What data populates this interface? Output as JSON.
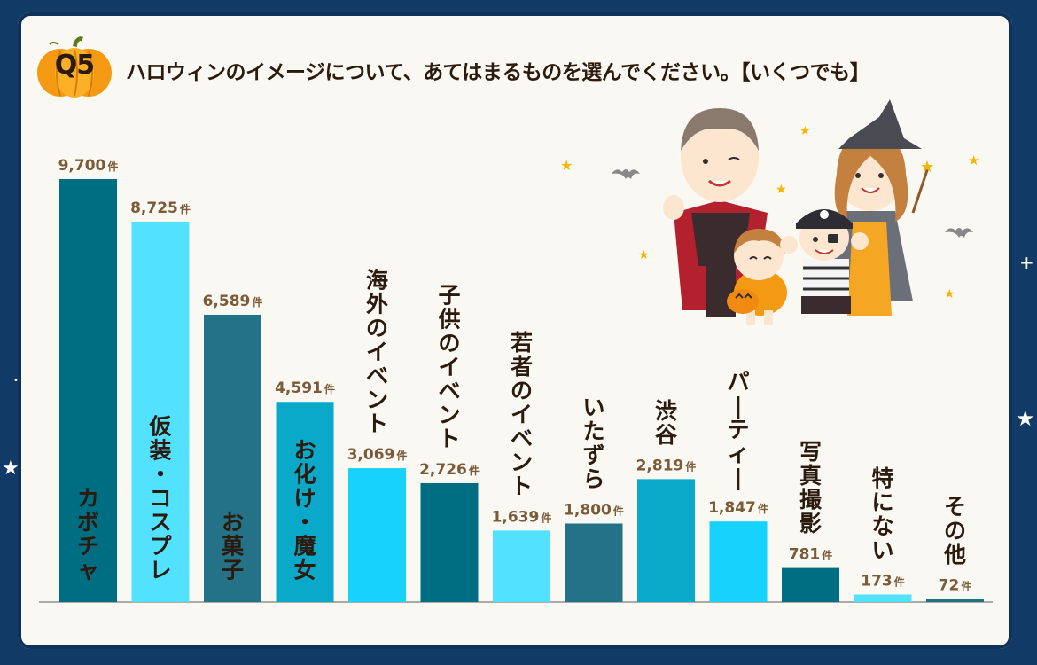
{
  "badge": "Q5",
  "title": "ハロウィンのイメージについて、あてはまるものを選んでください。【いくつでも】",
  "chart_data": {
    "type": "bar",
    "unit": "件",
    "categories": [
      "カボチャ",
      "仮装・コスプレ",
      "お菓子",
      "お化け・魔女",
      "海外のイベント",
      "子供のイベント",
      "若者のイベント",
      "いたずら",
      "渋谷",
      "パーティー",
      "写真撮影",
      "特にない",
      "その他"
    ],
    "values": [
      9700,
      8725,
      6589,
      4591,
      3069,
      2726,
      1639,
      1800,
      2819,
      1847,
      781,
      173,
      72
    ],
    "value_labels": [
      "9,700",
      "8,725",
      "6,589",
      "4,591",
      "3,069",
      "2,726",
      "1,639",
      "1,800",
      "2,819",
      "1,847",
      "781",
      "173",
      "72"
    ],
    "colors": [
      "#006e82",
      "#52e2ff",
      "#237287",
      "#0aa9c9",
      "#17d2fb",
      "#006e82",
      "#52e2ff",
      "#237287",
      "#0aa9c9",
      "#17d2fb",
      "#006e82",
      "#52e2ff",
      "#237287"
    ],
    "label_color": "#2b1a0e",
    "value_label_color": "#7a5a38",
    "ylim": [
      0,
      9700
    ],
    "grid": false,
    "legend": "none"
  },
  "illustration": {
    "name": "halloween-family-illustration",
    "figures": [
      "vampire-dad",
      "witch-mom",
      "pumpkin-girl",
      "pirate-boy"
    ]
  }
}
